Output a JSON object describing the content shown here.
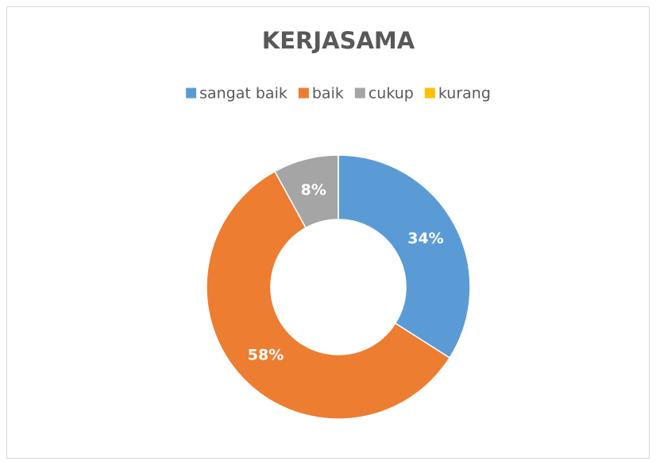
{
  "chart_data": {
    "type": "donut",
    "title": "KERJASAMA",
    "categories": [
      "sangat baik",
      "baik",
      "cukup",
      "kurang"
    ],
    "values": [
      34,
      58,
      8,
      0
    ],
    "value_labels": [
      "34%",
      "58%",
      "8%",
      null
    ],
    "colors": [
      "#5b9bd5",
      "#ed7d31",
      "#a5a5a5",
      "#ffc000"
    ],
    "legend": "top"
  }
}
